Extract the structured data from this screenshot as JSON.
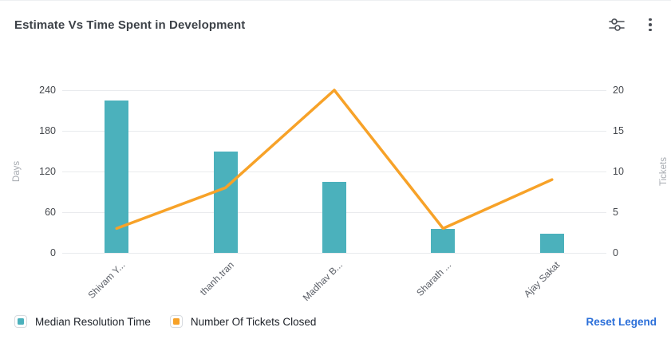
{
  "header": {
    "title": "Estimate Vs Time Spent in Development",
    "icons": [
      {
        "name": "sliders-settings-icon"
      },
      {
        "name": "kebab-menu-icon"
      }
    ]
  },
  "chart_data": {
    "type": "bar+line",
    "title": "Estimate Vs Time Spent in Development",
    "categories": [
      "Shivam Y...",
      "thanh.tran",
      "Madhav B...",
      "Sharath ...",
      "Ajay Sakat"
    ],
    "series": [
      {
        "name": "Median Resolution Time",
        "type": "bar",
        "axis": "left",
        "color": "#4bb1bc",
        "values": [
          225,
          150,
          105,
          35,
          28
        ]
      },
      {
        "name": "Number Of Tickets Closed",
        "type": "line",
        "axis": "right",
        "color": "#f7a228",
        "values": [
          3,
          8,
          20,
          3,
          9
        ]
      }
    ],
    "left_axis": {
      "name": "Days",
      "min": 0,
      "max": 240,
      "ticks": [
        0,
        60,
        120,
        180,
        240
      ]
    },
    "right_axis": {
      "name": "Tickets",
      "min": 0,
      "max": 20,
      "ticks": [
        0,
        5,
        10,
        15,
        20
      ]
    },
    "grid": true,
    "legend_position": "bottom-left"
  },
  "legend": {
    "reset_label": "Reset Legend"
  },
  "colors": {
    "bar": "#4bb1bc",
    "line": "#f7a228",
    "gridline": "#e9ebee",
    "reset_link": "#2b6fd9"
  }
}
